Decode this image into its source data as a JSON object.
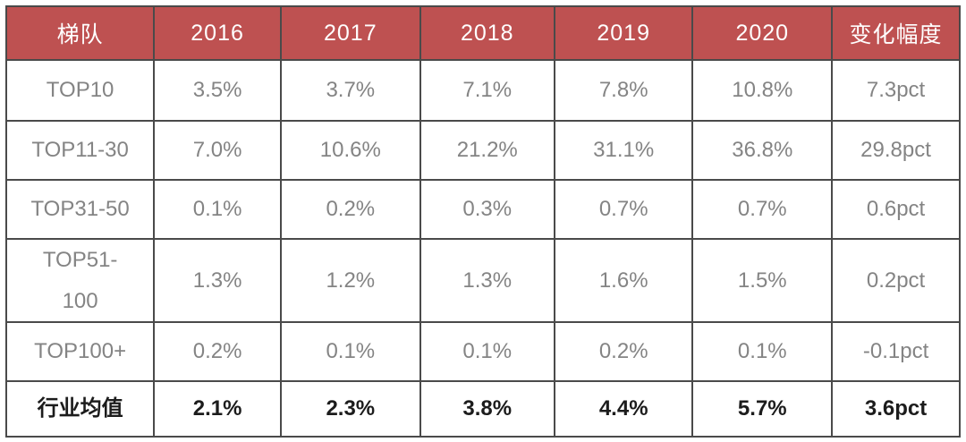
{
  "table": {
    "columns": [
      "梯队",
      "2016",
      "2017",
      "2018",
      "2019",
      "2020",
      "变化幅度"
    ],
    "rows": [
      {
        "label": "TOP10",
        "values": [
          "3.5%",
          "3.7%",
          "7.1%",
          "7.8%",
          "10.8%",
          "7.3pct"
        ],
        "emphasis": false
      },
      {
        "label": "TOP11-30",
        "values": [
          "7.0%",
          "10.6%",
          "21.2%",
          "31.1%",
          "36.8%",
          "29.8pct"
        ],
        "emphasis": false
      },
      {
        "label": "TOP31-50",
        "values": [
          "0.1%",
          "0.2%",
          "0.3%",
          "0.7%",
          "0.7%",
          "0.6pct"
        ],
        "emphasis": false
      },
      {
        "label": "TOP51-\n100",
        "values": [
          "1.3%",
          "1.2%",
          "1.3%",
          "1.6%",
          "1.5%",
          "0.2pct"
        ],
        "emphasis": false
      },
      {
        "label": "TOP100+",
        "values": [
          "0.2%",
          "0.1%",
          "0.1%",
          "0.2%",
          "0.1%",
          "-0.1pct"
        ],
        "emphasis": false
      },
      {
        "label": "行业均值",
        "values": [
          "2.1%",
          "2.3%",
          "3.8%",
          "4.4%",
          "5.7%",
          "3.6pct"
        ],
        "emphasis": true
      }
    ],
    "colors": {
      "header_bg": "#be5151",
      "header_text": "#ffffff",
      "cell_text": "#848484",
      "emphasis_text": "#1c1c1c",
      "border": "#4a4a4a"
    }
  },
  "chart_data": {
    "type": "table",
    "title": "",
    "categories": [
      "2016",
      "2017",
      "2018",
      "2019",
      "2020"
    ],
    "value_unit": "%",
    "change_column_label": "变化幅度",
    "change_unit": "pct",
    "tier_column_label": "梯队",
    "series": [
      {
        "name": "TOP10",
        "values": [
          3.5,
          3.7,
          7.1,
          7.8,
          10.8
        ],
        "change": 7.3
      },
      {
        "name": "TOP11-30",
        "values": [
          7.0,
          10.6,
          21.2,
          31.1,
          36.8
        ],
        "change": 29.8
      },
      {
        "name": "TOP31-50",
        "values": [
          0.1,
          0.2,
          0.3,
          0.7,
          0.7
        ],
        "change": 0.6
      },
      {
        "name": "TOP51-100",
        "values": [
          1.3,
          1.2,
          1.3,
          1.6,
          1.5
        ],
        "change": 0.2
      },
      {
        "name": "TOP100+",
        "values": [
          0.2,
          0.1,
          0.1,
          0.2,
          0.1
        ],
        "change": -0.1
      },
      {
        "name": "行业均值",
        "values": [
          2.1,
          2.3,
          3.8,
          4.4,
          5.7
        ],
        "change": 3.6
      }
    ]
  }
}
